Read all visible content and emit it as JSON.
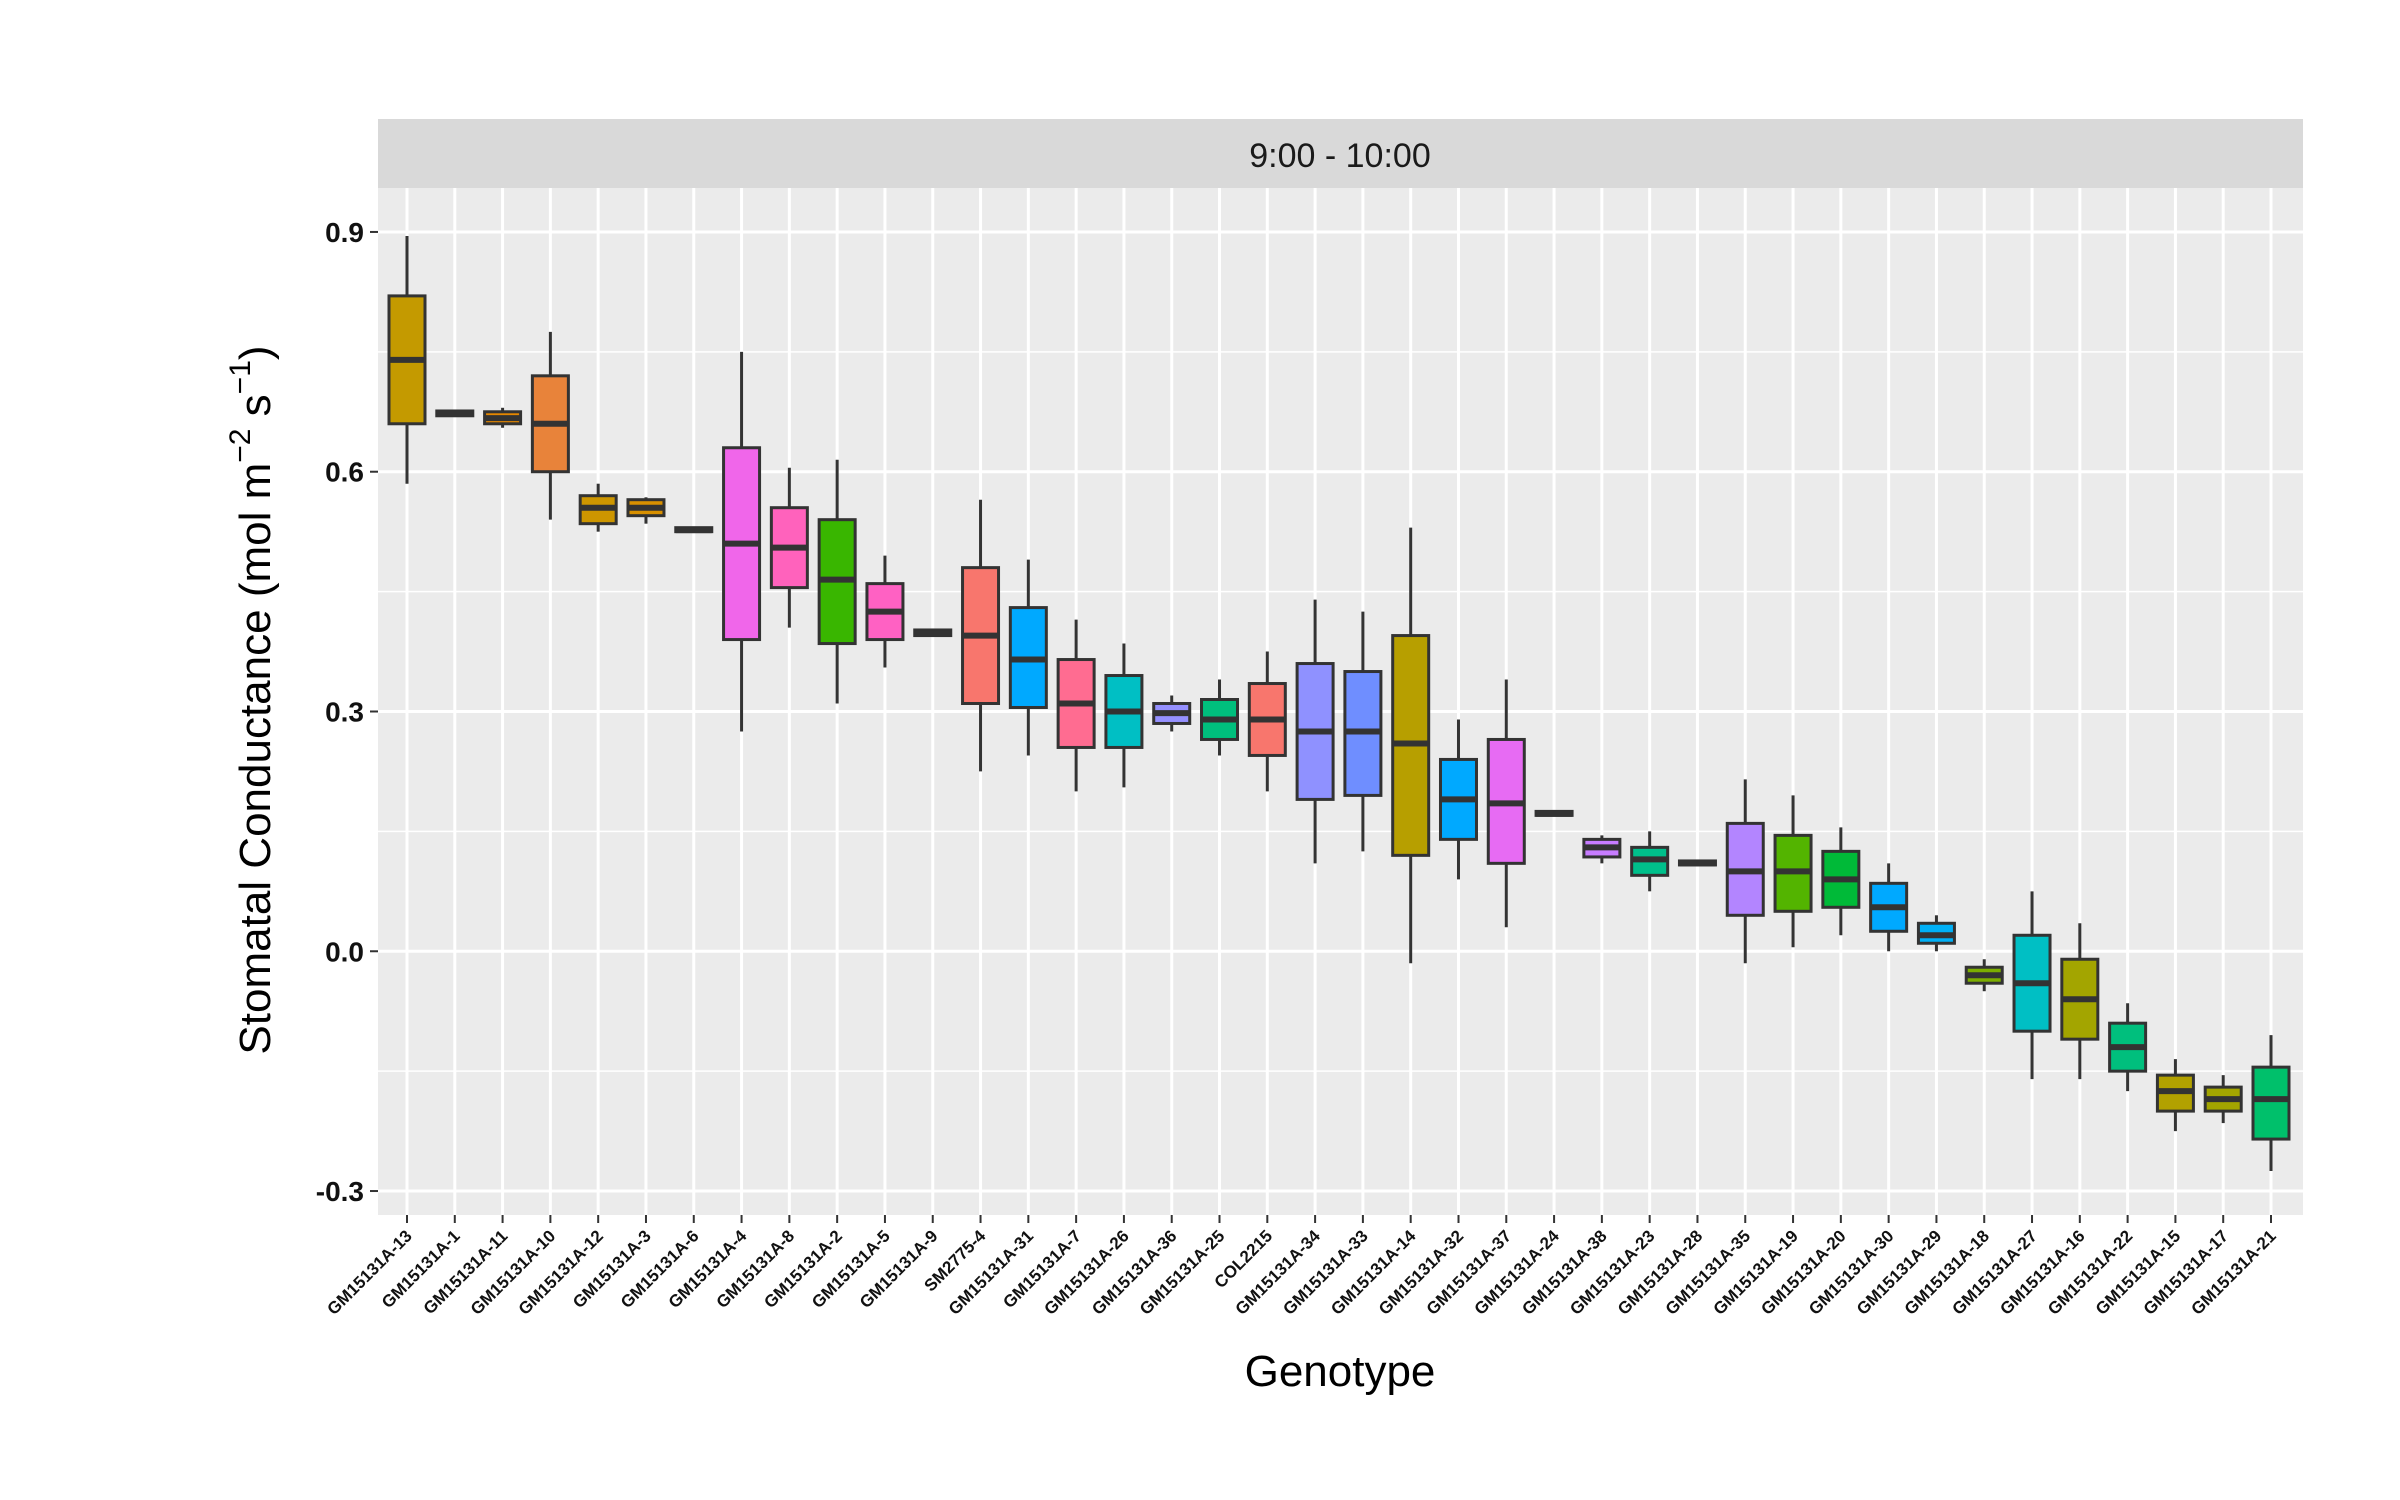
{
  "chart_data": {
    "type": "boxplot",
    "facet_label": "9:00 - 10:00",
    "xlabel": "Genotype",
    "ylabel": {
      "main": "Stomatal Conductance (mol m",
      "sup1": "−2",
      "mid": " s",
      "sup2": "−1",
      "end": ")"
    },
    "ylim": [
      -0.33,
      0.955
    ],
    "yticks": [
      {
        "value": -0.3,
        "label": "-0.3"
      },
      {
        "value": 0.0,
        "label": "0.0"
      },
      {
        "value": 0.3,
        "label": "0.3"
      },
      {
        "value": 0.6,
        "label": "0.6"
      },
      {
        "value": 0.9,
        "label": "0.9"
      }
    ],
    "grid": true,
    "legend": "none",
    "categories": [
      "GM15131A-13",
      "GM15131A-1",
      "GM15131A-11",
      "GM15131A-10",
      "GM15131A-12",
      "GM15131A-3",
      "GM15131A-6",
      "GM15131A-4",
      "GM15131A-8",
      "GM15131A-2",
      "GM15131A-5",
      "GM15131A-9",
      "SM2775-4",
      "GM15131A-31",
      "GM15131A-7",
      "GM15131A-26",
      "GM15131A-36",
      "GM15131A-25",
      "COL2215",
      "GM15131A-34",
      "GM15131A-33",
      "GM15131A-14",
      "GM15131A-32",
      "GM15131A-37",
      "GM15131A-24",
      "GM15131A-38",
      "GM15131A-23",
      "GM15131A-28",
      "GM15131A-35",
      "GM15131A-19",
      "GM15131A-20",
      "GM15131A-30",
      "GM15131A-29",
      "GM15131A-18",
      "GM15131A-27",
      "GM15131A-16",
      "GM15131A-22",
      "GM15131A-15",
      "GM15131A-17",
      "GM15131A-21"
    ],
    "boxes": [
      {
        "min": 0.585,
        "q1": 0.66,
        "median": 0.74,
        "q3": 0.82,
        "max": 0.895,
        "color": "#C49A00"
      },
      {
        "min": 0.67,
        "q1": 0.67,
        "median": 0.673,
        "q3": 0.676,
        "max": 0.676,
        "color": "#C9A100"
      },
      {
        "min": 0.655,
        "q1": 0.66,
        "median": 0.667,
        "q3": 0.675,
        "max": 0.68,
        "color": "#E58700"
      },
      {
        "min": 0.54,
        "q1": 0.6,
        "median": 0.66,
        "q3": 0.72,
        "max": 0.775,
        "color": "#E8833A"
      },
      {
        "min": 0.525,
        "q1": 0.535,
        "median": 0.555,
        "q3": 0.57,
        "max": 0.585,
        "color": "#CD9600"
      },
      {
        "min": 0.535,
        "q1": 0.545,
        "median": 0.555,
        "q3": 0.565,
        "max": 0.568,
        "color": "#D89000"
      },
      {
        "min": 0.525,
        "q1": 0.525,
        "median": 0.527,
        "q3": 0.53,
        "max": 0.53,
        "color": "#E18A00"
      },
      {
        "min": 0.275,
        "q1": 0.39,
        "median": 0.51,
        "q3": 0.63,
        "max": 0.75,
        "color": "#F066EA"
      },
      {
        "min": 0.405,
        "q1": 0.455,
        "median": 0.505,
        "q3": 0.555,
        "max": 0.605,
        "color": "#FF62BC"
      },
      {
        "min": 0.31,
        "q1": 0.385,
        "median": 0.465,
        "q3": 0.54,
        "max": 0.615,
        "color": "#39B600"
      },
      {
        "min": 0.355,
        "q1": 0.39,
        "median": 0.425,
        "q3": 0.46,
        "max": 0.495,
        "color": "#FF61C3"
      },
      {
        "min": 0.395,
        "q1": 0.395,
        "median": 0.398,
        "q3": 0.402,
        "max": 0.402,
        "color": "#00BFC4"
      },
      {
        "min": 0.225,
        "q1": 0.31,
        "median": 0.395,
        "q3": 0.48,
        "max": 0.565,
        "color": "#F8766D"
      },
      {
        "min": 0.245,
        "q1": 0.305,
        "median": 0.365,
        "q3": 0.43,
        "max": 0.49,
        "color": "#00A9FF"
      },
      {
        "min": 0.2,
        "q1": 0.255,
        "median": 0.31,
        "q3": 0.365,
        "max": 0.415,
        "color": "#FF6C91"
      },
      {
        "min": 0.205,
        "q1": 0.255,
        "median": 0.3,
        "q3": 0.345,
        "max": 0.385,
        "color": "#00BFC4"
      },
      {
        "min": 0.275,
        "q1": 0.285,
        "median": 0.298,
        "q3": 0.31,
        "max": 0.32,
        "color": "#9590FF"
      },
      {
        "min": 0.245,
        "q1": 0.265,
        "median": 0.29,
        "q3": 0.315,
        "max": 0.34,
        "color": "#00BF7D"
      },
      {
        "min": 0.2,
        "q1": 0.245,
        "median": 0.29,
        "q3": 0.335,
        "max": 0.375,
        "color": "#F8766D"
      },
      {
        "min": 0.11,
        "q1": 0.19,
        "median": 0.275,
        "q3": 0.36,
        "max": 0.44,
        "color": "#8F91FF"
      },
      {
        "min": 0.125,
        "q1": 0.195,
        "median": 0.275,
        "q3": 0.35,
        "max": 0.425,
        "color": "#6F8EFF"
      },
      {
        "min": -0.015,
        "q1": 0.12,
        "median": 0.26,
        "q3": 0.395,
        "max": 0.53,
        "color": "#B79F00"
      },
      {
        "min": 0.09,
        "q1": 0.14,
        "median": 0.19,
        "q3": 0.24,
        "max": 0.29,
        "color": "#00A9FF"
      },
      {
        "min": 0.03,
        "q1": 0.11,
        "median": 0.185,
        "q3": 0.265,
        "max": 0.34,
        "color": "#E76BF3"
      },
      {
        "min": 0.17,
        "q1": 0.17,
        "median": 0.172,
        "q3": 0.175,
        "max": 0.175,
        "color": "#00BA38"
      },
      {
        "min": 0.11,
        "q1": 0.118,
        "median": 0.13,
        "q3": 0.14,
        "max": 0.145,
        "color": "#C77CFF"
      },
      {
        "min": 0.075,
        "q1": 0.095,
        "median": 0.115,
        "q3": 0.13,
        "max": 0.15,
        "color": "#00C08B"
      },
      {
        "min": 0.108,
        "q1": 0.108,
        "median": 0.11,
        "q3": 0.113,
        "max": 0.113,
        "color": "#00BA38"
      },
      {
        "min": -0.015,
        "q1": 0.045,
        "median": 0.1,
        "q3": 0.16,
        "max": 0.215,
        "color": "#B385FF"
      },
      {
        "min": 0.005,
        "q1": 0.05,
        "median": 0.1,
        "q3": 0.145,
        "max": 0.195,
        "color": "#53B400"
      },
      {
        "min": 0.02,
        "q1": 0.055,
        "median": 0.09,
        "q3": 0.125,
        "max": 0.155,
        "color": "#00BA38"
      },
      {
        "min": 0.0,
        "q1": 0.025,
        "median": 0.055,
        "q3": 0.085,
        "max": 0.11,
        "color": "#00A9FF"
      },
      {
        "min": 0.0,
        "q1": 0.01,
        "median": 0.02,
        "q3": 0.035,
        "max": 0.045,
        "color": "#00B0F6"
      },
      {
        "min": -0.05,
        "q1": -0.04,
        "median": -0.03,
        "q3": -0.02,
        "max": -0.01,
        "color": "#7CAE00"
      },
      {
        "min": -0.16,
        "q1": -0.1,
        "median": -0.04,
        "q3": 0.02,
        "max": 0.075,
        "color": "#00BFC4"
      },
      {
        "min": -0.16,
        "q1": -0.11,
        "median": -0.06,
        "q3": -0.01,
        "max": 0.035,
        "color": "#A3A500"
      },
      {
        "min": -0.175,
        "q1": -0.15,
        "median": -0.12,
        "q3": -0.09,
        "max": -0.065,
        "color": "#00BF7D"
      },
      {
        "min": -0.225,
        "q1": -0.2,
        "median": -0.175,
        "q3": -0.155,
        "max": -0.135,
        "color": "#B2A100"
      },
      {
        "min": -0.215,
        "q1": -0.2,
        "median": -0.185,
        "q3": -0.17,
        "max": -0.155,
        "color": "#A3A500"
      },
      {
        "min": -0.275,
        "q1": -0.235,
        "median": -0.185,
        "q3": -0.145,
        "max": -0.105,
        "color": "#00C06B"
      }
    ]
  }
}
